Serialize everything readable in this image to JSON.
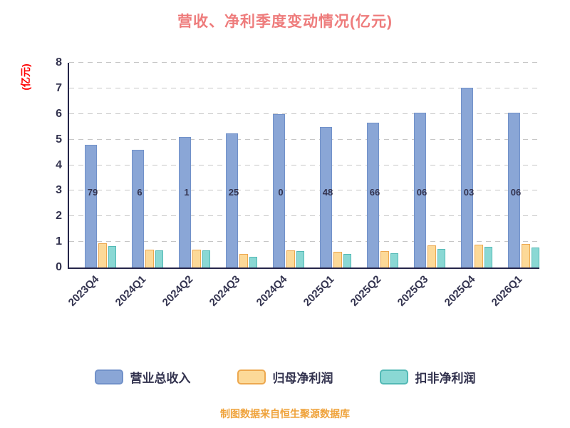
{
  "title": "营收、净利季度变动情况(亿元)",
  "y_axis_label": "(亿元)",
  "footer": "制图数据来自恒生聚源数据库",
  "colors": {
    "title": "#ee7c7c",
    "ylabel": "#ff0000",
    "axis_text": "#33334f",
    "footer": "#efa23a",
    "grid": "#c6c6c6",
    "axis_line": "#26264a"
  },
  "chart_data": {
    "type": "bar",
    "title": "营收、净利季度变动情况(亿元)",
    "xlabel": "",
    "ylabel": "(亿元)",
    "ylim": [
      0,
      8
    ],
    "yticks": [
      0,
      1,
      2,
      3,
      4,
      5,
      6,
      7,
      8
    ],
    "grid": true,
    "grid_style": "dashed",
    "legend_position": "bottom",
    "categories": [
      "2023Q4",
      "2024Q1",
      "2024Q2",
      "2024Q3",
      "2024Q4",
      "2025Q1",
      "2025Q2",
      "2025Q3",
      "2025Q4",
      "2026Q1"
    ],
    "series": [
      {
        "name": "营业总收入",
        "color": "#8aa6d6",
        "border": "#7191c9",
        "values": [
          4.79,
          4.6,
          5.1,
          5.25,
          6.0,
          5.48,
          5.66,
          6.06,
          7.03,
          6.06
        ]
      },
      {
        "name": "归母净利润",
        "color": "#fcd998",
        "border": "#eda84f",
        "values": [
          0.95,
          0.7,
          0.7,
          0.52,
          0.68,
          0.62,
          0.63,
          0.87,
          0.88,
          0.93
        ]
      },
      {
        "name": "扣非净利润",
        "color": "#8ad8d4",
        "border": "#53b9b5",
        "values": [
          0.85,
          0.67,
          0.67,
          0.42,
          0.63,
          0.52,
          0.57,
          0.72,
          0.8,
          0.78
        ]
      }
    ],
    "visible_bar_label_fragments": [
      "79",
      "6",
      "1",
      "25",
      "0",
      "48",
      "66",
      "06",
      "03",
      "06"
    ]
  }
}
